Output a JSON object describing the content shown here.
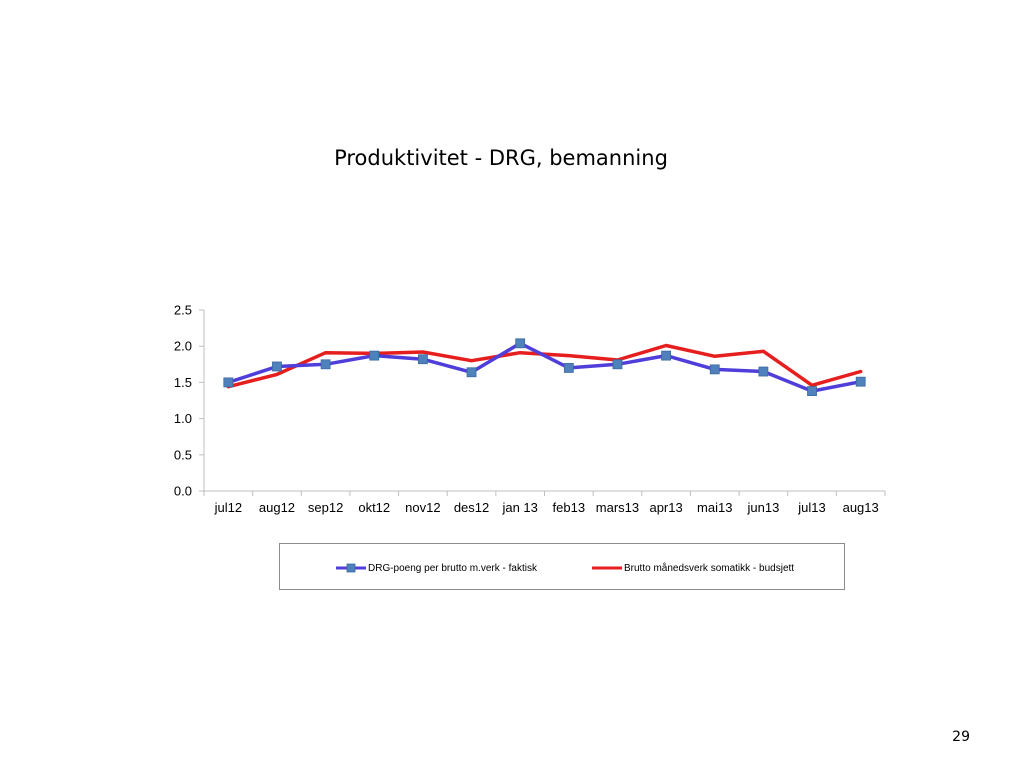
{
  "slide": {
    "page_number": "29"
  },
  "colors": {
    "series_1": "#4f3ed9",
    "series_1_marker": "#4f81bd",
    "series_2": "#e61e1e",
    "axis": "#bfbfbf"
  },
  "chart_data": {
    "type": "line",
    "title": "Produktivitet - DRG, bemanning",
    "xlabel": "",
    "ylabel": "",
    "ylim": [
      0,
      2.5
    ],
    "y_ticks": [
      "0.0",
      "0.5",
      "1.0",
      "1.5",
      "2.0",
      "2.5"
    ],
    "grid": false,
    "legend_position": "bottom",
    "categories": [
      "jul12",
      "aug12",
      "sep12",
      "okt12",
      "nov12",
      "des12",
      "jan 13",
      "feb13",
      "mars13",
      "apr13",
      "mai13",
      "jun13",
      "jul13",
      "aug13"
    ],
    "series": [
      {
        "name": "DRG-poeng per brutto m.verk - faktisk",
        "markers": true,
        "values": [
          1.5,
          1.72,
          1.75,
          1.87,
          1.82,
          1.64,
          2.04,
          1.7,
          1.75,
          1.87,
          1.68,
          1.65,
          1.38,
          1.51
        ]
      },
      {
        "name": "Brutto månedsverk somatikk - budsjett",
        "markers": false,
        "values": [
          1.44,
          1.61,
          1.91,
          1.9,
          1.92,
          1.8,
          1.91,
          1.87,
          1.81,
          2.01,
          1.86,
          1.93,
          1.46,
          1.65
        ]
      }
    ]
  }
}
